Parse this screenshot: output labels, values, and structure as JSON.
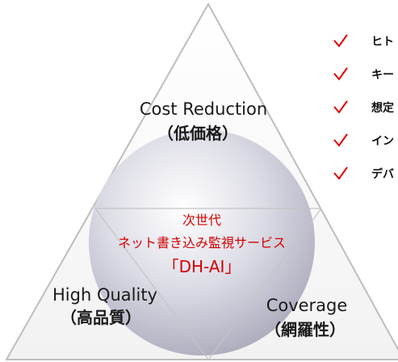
{
  "diagram": {
    "center": {
      "lines": [
        "次世代",
        "ネット書き込み監視サービス",
        "「DH-AI」"
      ]
    },
    "corners": [
      {
        "label": "Cost Reduction",
        "sublabel": "（低価格）"
      },
      {
        "label": "High Quality",
        "sublabel": "（高品質）"
      },
      {
        "label": "Coverage",
        "sublabel": "（網羅性）"
      }
    ],
    "checklist": [
      "ヒト",
      "キー",
      "想定",
      "イン",
      "デバ"
    ]
  }
}
